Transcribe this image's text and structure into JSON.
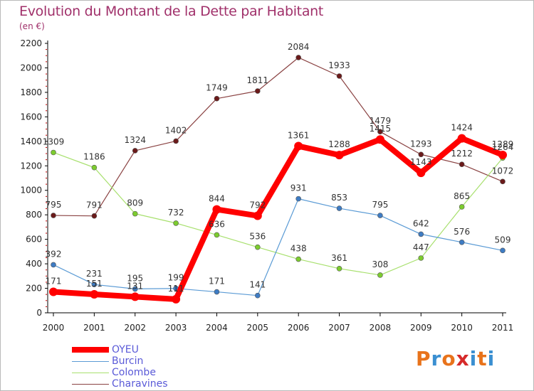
{
  "title": "Evolution du Montant de la Dette par Habitant",
  "unit": "(en €)",
  "logo": {
    "text": "Proxiti",
    "letter_colors": [
      "#e8731b",
      "#3a8fd1",
      "#e8731b",
      "#d62a2a",
      "#3a8fd1",
      "#e8731b",
      "#3a8fd1"
    ]
  },
  "colors": {
    "title": "#a0306a",
    "axis": "#000000",
    "minor_tick": "#cc0000",
    "grid": "#e6e6e6"
  },
  "chart_data": {
    "type": "line",
    "title": "Evolution du Montant de la Dette par Habitant",
    "subtitle": "(en €)",
    "xlabel": "",
    "ylabel": "",
    "x": [
      "2000",
      "2001",
      "2002",
      "2003",
      "2004",
      "2005",
      "2006",
      "2007",
      "2008",
      "2009",
      "2010",
      "2011"
    ],
    "ylim": [
      0,
      2200
    ],
    "yticks": [
      0,
      200,
      400,
      600,
      800,
      1000,
      1200,
      1400,
      1600,
      1800,
      2000,
      2200
    ],
    "grid": false,
    "legend_position": "bottom-left",
    "series": [
      {
        "name": "OYEU",
        "color": "#ff0000",
        "marker_color": "#ff0000",
        "values": [
          171,
          151,
          131,
          111,
          844,
          792,
          1361,
          1288,
          1415,
          1143,
          1424,
          1289
        ],
        "labels": [
          "171",
          "151",
          "131",
          "111",
          "844",
          "792",
          "1361",
          "1288",
          "1415",
          "1143",
          "1424",
          "1289"
        ]
      },
      {
        "name": "Burcin",
        "color": "#5b9bd5",
        "marker_color": "#3e7cc4",
        "values": [
          392,
          231,
          195,
          199,
          171,
          141,
          931,
          853,
          795,
          642,
          576,
          509
        ],
        "labels": [
          "392",
          "231",
          "195",
          "199",
          "171",
          "141",
          "931",
          "853",
          "795",
          "642",
          "576",
          "509"
        ]
      },
      {
        "name": "Colombe",
        "color": "#a8e06e",
        "marker_color": "#7ccc2e",
        "values": [
          1309,
          1186,
          809,
          732,
          636,
          536,
          438,
          361,
          308,
          447,
          865,
          1264
        ],
        "labels": [
          "1309",
          "1186",
          "809",
          "732",
          "636",
          "536",
          "438",
          "361",
          "308",
          "447",
          "865",
          "1264"
        ]
      },
      {
        "name": "Charavines",
        "color": "#8a4242",
        "marker_color": "#6b1a1a",
        "values": [
          795,
          791,
          1324,
          1402,
          1749,
          1811,
          2084,
          1933,
          1479,
          1293,
          1212,
          1072
        ],
        "labels": [
          "795",
          "791",
          "1324",
          "1402",
          "1749",
          "1811",
          "2084",
          "1933",
          "1479",
          "1293",
          "1212",
          "1072"
        ]
      }
    ]
  }
}
